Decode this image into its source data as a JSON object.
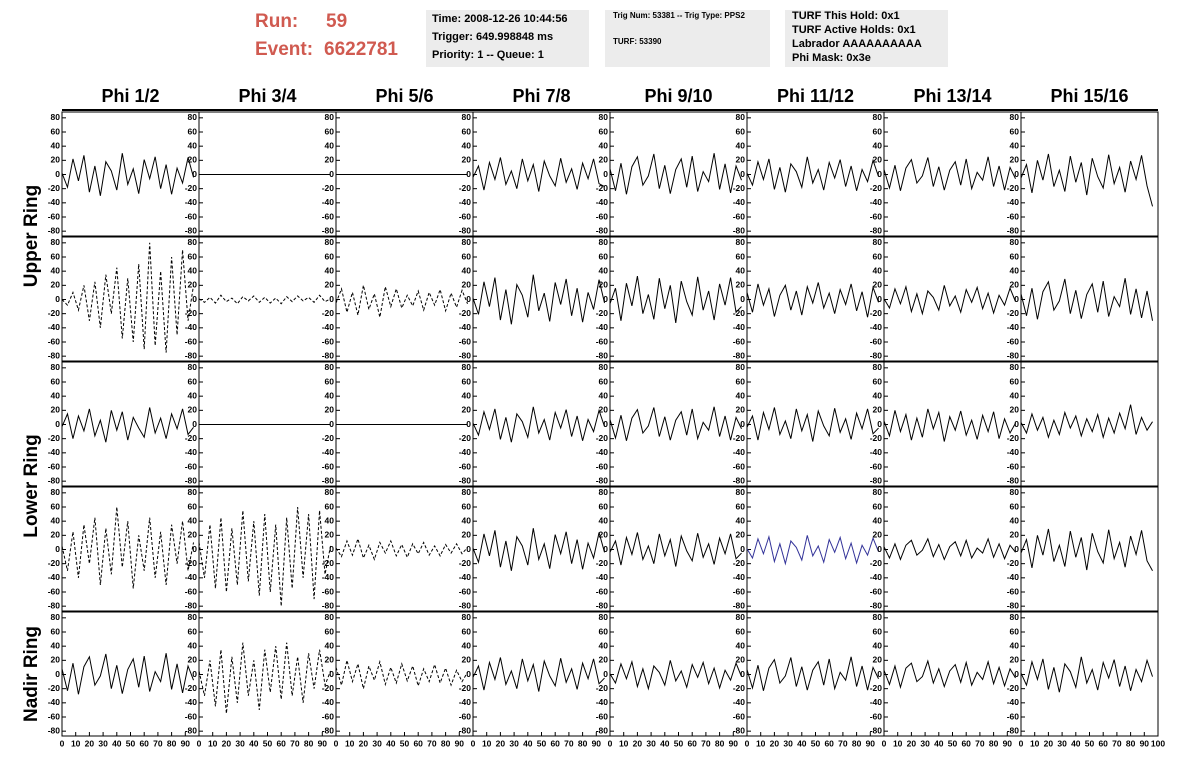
{
  "header": {
    "run_label": "Run:",
    "run": "59",
    "event_label": "Event:",
    "event": "6622781",
    "info": [
      [
        "Time: 2008-12-26 10:44:56",
        "Trigger: 649.998848 ms",
        "Priority: 1 -- Queue: 1"
      ],
      [
        "Trig Num: 53381 -- Trig Type: PPS2",
        "TURF: 53390"
      ],
      [
        "TURF This Hold: 0x1",
        "TURF Active Holds: 0x1",
        "Labrador AAAAAAAAAA",
        "Phi Mask: 0x3e"
      ]
    ]
  },
  "columns": [
    "Phi 1/2",
    "Phi 3/4",
    "Phi 5/6",
    "Phi 7/8",
    "Phi 9/10",
    "Phi 11/12",
    "Phi 13/14",
    "Phi 15/16"
  ],
  "rows": [
    "Upper Ring",
    "Lower Ring",
    "Nadir Ring"
  ],
  "axes": {
    "xlim": [
      0,
      100
    ],
    "ylim": [
      -84,
      84
    ],
    "xticks": [
      0,
      10,
      20,
      30,
      40,
      50,
      60,
      70,
      80,
      90,
      100
    ],
    "yticks": [
      -80,
      -60,
      -40,
      -20,
      0,
      20,
      40,
      60,
      80
    ]
  },
  "x": [
    0,
    4,
    8,
    12,
    16,
    20,
    24,
    28,
    32,
    36,
    40,
    44,
    48,
    52,
    56,
    60,
    64,
    68,
    72,
    76,
    80,
    84,
    88,
    92,
    96
  ],
  "panels": [
    [
      {
        "line_style": "solid",
        "color": "#000000",
        "values": [
          2,
          -18,
          22,
          -9,
          27,
          -25,
          12,
          -30,
          18,
          5,
          -22,
          30,
          -14,
          8,
          -27,
          21,
          -6,
          25,
          -20,
          14,
          -28,
          9,
          -12,
          24,
          -4
        ]
      },
      {
        "line_style": "solid",
        "color": "#000000",
        "values": [
          0,
          0,
          0,
          0,
          0,
          0,
          0,
          0,
          0,
          0,
          0,
          0,
          0,
          0,
          0,
          0,
          0,
          0,
          0,
          0,
          0,
          0,
          0,
          0,
          0
        ]
      },
      {
        "line_style": "solid",
        "color": "#000000",
        "values": [
          0,
          0,
          0,
          0,
          0,
          0,
          0,
          0,
          0,
          0,
          0,
          0,
          0,
          0,
          0,
          0,
          0,
          0,
          0,
          0,
          0,
          0,
          0,
          0,
          0
        ]
      },
      {
        "line_style": "solid",
        "color": "#000000",
        "values": [
          -4,
          12,
          -22,
          17,
          -7,
          24,
          -14,
          5,
          -20,
          22,
          -9,
          14,
          -24,
          19,
          -2,
          -16,
          23,
          -11,
          8,
          -21,
          16,
          -6,
          22,
          -13,
          -17
        ]
      },
      {
        "line_style": "solid",
        "color": "#000000",
        "values": [
          8,
          -23,
          16,
          -28,
          11,
          25,
          -15,
          -2,
          29,
          -20,
          13,
          -27,
          7,
          22,
          -18,
          26,
          -24,
          4,
          -10,
          30,
          -21,
          15,
          -26,
          12,
          -8
        ]
      },
      {
        "line_style": "solid",
        "color": "#000000",
        "values": [
          2,
          -15,
          18,
          -7,
          22,
          -21,
          10,
          -25,
          15,
          4,
          -18,
          25,
          -12,
          7,
          -22,
          17,
          -5,
          21,
          -17,
          12,
          -23,
          7,
          -10,
          20,
          -3
        ]
      },
      {
        "line_style": "solid",
        "color": "#000000",
        "values": [
          7,
          -19,
          13,
          -23,
          9,
          21,
          -12,
          -2,
          24,
          -17,
          11,
          -22,
          6,
          18,
          -15,
          22,
          -20,
          3,
          -8,
          25,
          -17,
          12,
          -22,
          10,
          -6
        ]
      },
      {
        "line_style": "solid",
        "color": "#000000",
        "values": [
          -5,
          14,
          -26,
          20,
          -8,
          29,
          -17,
          6,
          -24,
          26,
          -11,
          17,
          -29,
          23,
          -3,
          -19,
          28,
          -13,
          10,
          -25,
          19,
          -7,
          27,
          -16,
          -45
        ]
      }
    ],
    [
      {
        "line_style": "dashed",
        "color": "#000000",
        "values": [
          0,
          -8,
          10,
          -15,
          20,
          -30,
          25,
          -40,
          35,
          -20,
          45,
          -55,
          30,
          -60,
          50,
          -70,
          80,
          -65,
          40,
          -75,
          60,
          -50,
          70,
          -30,
          20
        ]
      },
      {
        "line_style": "dashed",
        "color": "#000000",
        "values": [
          1,
          -4,
          3,
          -5,
          6,
          -3,
          2,
          -6,
          4,
          -2,
          5,
          -4,
          3,
          -5,
          2,
          -6,
          4,
          -3,
          5,
          -2,
          3,
          -4,
          6,
          -3,
          1
        ]
      },
      {
        "line_style": "dashed",
        "color": "#000000",
        "values": [
          -5,
          15,
          -18,
          10,
          -22,
          20,
          -14,
          8,
          -25,
          18,
          -10,
          15,
          -12,
          6,
          -9,
          12,
          -15,
          10,
          -8,
          14,
          -16,
          9,
          -11,
          13,
          -6
        ]
      },
      {
        "line_style": "solid",
        "color": "#000000",
        "values": [
          2,
          -21,
          25,
          -10,
          31,
          -29,
          14,
          -35,
          21,
          6,
          -25,
          35,
          -16,
          9,
          -31,
          24,
          -7,
          29,
          -23,
          16,
          -32,
          10,
          -14,
          28,
          -5
        ]
      },
      {
        "line_style": "solid",
        "color": "#000000",
        "values": [
          -6,
          16,
          -30,
          23,
          -9,
          33,
          -20,
          7,
          -28,
          30,
          -13,
          20,
          -33,
          26,
          -3,
          -22,
          32,
          -15,
          12,
          -29,
          22,
          -8,
          31,
          -18,
          -10
        ]
      },
      {
        "line_style": "solid",
        "color": "#000000",
        "values": [
          10,
          -18,
          22,
          -8,
          15,
          -24,
          6,
          20,
          -15,
          12,
          -22,
          18,
          -5,
          24,
          -12,
          9,
          -20,
          14,
          -7,
          22,
          -16,
          11,
          -25,
          17,
          -4
        ]
      },
      {
        "line_style": "solid",
        "color": "#000000",
        "values": [
          1,
          -12,
          15,
          -6,
          18,
          -17,
          8,
          -20,
          12,
          3,
          -15,
          20,
          -9,
          5,
          -18,
          14,
          -4,
          17,
          -13,
          9,
          -19,
          6,
          -8,
          16,
          -3
        ]
      },
      {
        "line_style": "solid",
        "color": "#000000",
        "values": [
          8,
          -23,
          16,
          -28,
          11,
          25,
          -15,
          -2,
          29,
          -20,
          13,
          -27,
          7,
          22,
          -18,
          26,
          -24,
          4,
          -10,
          30,
          -21,
          15,
          -26,
          12,
          -30
        ]
      }
    ],
    [
      {
        "line_style": "solid",
        "color": "#000000",
        "values": [
          -3,
          15,
          -20,
          12,
          -9,
          22,
          -16,
          6,
          -25,
          20,
          -8,
          18,
          -22,
          10,
          -5,
          -18,
          24,
          -12,
          9,
          -20,
          15,
          -6,
          22,
          -14,
          -4
        ]
      },
      {
        "line_style": "solid",
        "color": "#000000",
        "values": [
          0,
          0,
          0,
          0,
          0,
          0,
          0,
          0,
          0,
          0,
          0,
          0,
          0,
          0,
          0,
          0,
          0,
          0,
          0,
          0,
          0,
          0,
          0,
          0,
          0
        ]
      },
      {
        "line_style": "solid",
        "color": "#000000",
        "values": [
          0,
          0,
          0,
          0,
          0,
          0,
          0,
          0,
          0,
          0,
          0,
          0,
          0,
          0,
          0,
          0,
          0,
          0,
          0,
          0,
          0,
          0,
          0,
          0,
          0
        ]
      },
      {
        "line_style": "solid",
        "color": "#000000",
        "values": [
          2,
          -15,
          18,
          -7,
          22,
          -21,
          10,
          -25,
          15,
          4,
          -18,
          25,
          -12,
          7,
          -22,
          17,
          -5,
          21,
          -17,
          12,
          -23,
          7,
          -10,
          20,
          -3
        ]
      },
      {
        "line_style": "solid",
        "color": "#000000",
        "values": [
          7,
          -19,
          13,
          -23,
          9,
          21,
          -12,
          -2,
          24,
          -17,
          11,
          -22,
          6,
          18,
          -15,
          22,
          -20,
          3,
          -8,
          25,
          -17,
          12,
          -22,
          10,
          -6
        ]
      },
      {
        "line_style": "solid",
        "color": "#000000",
        "values": [
          -4,
          12,
          -22,
          17,
          -7,
          24,
          -14,
          5,
          -20,
          22,
          -9,
          14,
          -24,
          19,
          -2,
          -16,
          23,
          -11,
          8,
          -21,
          16,
          -6,
          22,
          -13,
          -5
        ]
      },
      {
        "line_style": "solid",
        "color": "#000000",
        "values": [
          5,
          -16,
          20,
          -10,
          14,
          -22,
          9,
          -18,
          22,
          -6,
          17,
          -24,
          11,
          -8,
          19,
          -15,
          6,
          -21,
          13,
          -10,
          18,
          -20,
          8,
          -12,
          2
        ]
      },
      {
        "line_style": "solid",
        "color": "#000000",
        "values": [
          3,
          -12,
          15,
          -8,
          10,
          -18,
          6,
          -14,
          17,
          -5,
          12,
          -16,
          8,
          -10,
          14,
          -18,
          9,
          -12,
          16,
          -6,
          28,
          -14,
          10,
          -8,
          4
        ]
      }
    ],
    [
      {
        "line_style": "dashed",
        "color": "#000000",
        "values": [
          5,
          -30,
          25,
          -40,
          35,
          -20,
          45,
          -50,
          30,
          -35,
          60,
          -25,
          40,
          -55,
          20,
          -30,
          45,
          -40,
          25,
          -50,
          35,
          -20,
          40,
          -30,
          10
        ]
      },
      {
        "line_style": "dashed",
        "color": "#000000",
        "values": [
          10,
          -40,
          35,
          -55,
          45,
          -60,
          30,
          -50,
          55,
          -45,
          40,
          -65,
          50,
          -60,
          35,
          -80,
          45,
          -55,
          60,
          -40,
          50,
          -70,
          55,
          -35,
          5
        ]
      },
      {
        "line_style": "dashed",
        "color": "#000000",
        "values": [
          2,
          -10,
          12,
          -8,
          15,
          -12,
          6,
          -14,
          10,
          -5,
          12,
          -9,
          7,
          -11,
          8,
          -6,
          10,
          -8,
          5,
          -9,
          7,
          -5,
          8,
          -6,
          3
        ]
      },
      {
        "line_style": "solid",
        "color": "#000000",
        "values": [
          2,
          -18,
          22,
          -9,
          27,
          -25,
          12,
          -30,
          18,
          5,
          -22,
          30,
          -14,
          8,
          -27,
          21,
          -6,
          25,
          -20,
          14,
          -28,
          9,
          -12,
          24,
          -4
        ]
      },
      {
        "line_style": "solid",
        "color": "#000000",
        "values": [
          -4,
          12,
          -22,
          17,
          -7,
          24,
          -14,
          5,
          -20,
          22,
          -9,
          14,
          -24,
          19,
          -2,
          -16,
          23,
          -11,
          8,
          -21,
          16,
          -6,
          22,
          -13,
          -5
        ]
      },
      {
        "line_style": "solid",
        "color": "#333399",
        "values": [
          1,
          -12,
          15,
          -6,
          18,
          -17,
          8,
          -20,
          12,
          3,
          -15,
          20,
          -9,
          5,
          -18,
          14,
          -4,
          17,
          -13,
          9,
          -19,
          6,
          -8,
          16,
          -3
        ]
      },
      {
        "line_style": "solid",
        "color": "#000000",
        "values": [
          4,
          -12,
          8,
          -14,
          6,
          13,
          -8,
          -1,
          15,
          -10,
          7,
          -14,
          4,
          11,
          -9,
          13,
          -12,
          2,
          -5,
          15,
          -11,
          8,
          -13,
          6,
          -4
        ]
      },
      {
        "line_style": "solid",
        "color": "#000000",
        "values": [
          -5,
          14,
          -26,
          20,
          -8,
          29,
          -17,
          6,
          -24,
          26,
          -11,
          17,
          -29,
          23,
          -3,
          -19,
          28,
          -13,
          10,
          -25,
          19,
          -7,
          27,
          -16,
          -30
        ]
      }
    ],
    [
      {
        "line_style": "solid",
        "color": "#000000",
        "values": [
          8,
          -23,
          16,
          -28,
          11,
          25,
          -15,
          -2,
          29,
          -20,
          13,
          -27,
          7,
          22,
          -18,
          26,
          -24,
          4,
          -10,
          30,
          -21,
          15,
          -26,
          12,
          -8
        ]
      },
      {
        "line_style": "dashed",
        "color": "#000000",
        "values": [
          5,
          -30,
          20,
          -45,
          35,
          -55,
          25,
          -40,
          45,
          -30,
          20,
          -50,
          35,
          -25,
          40,
          -35,
          45,
          -30,
          25,
          -40,
          30,
          -20,
          35,
          -15,
          5
        ]
      },
      {
        "line_style": "dashed",
        "color": "#000000",
        "values": [
          10,
          -15,
          20,
          -10,
          15,
          -20,
          12,
          -8,
          18,
          -14,
          10,
          -12,
          15,
          -9,
          12,
          -16,
          8,
          -10,
          14,
          -12,
          9,
          -15,
          6,
          -10,
          3
        ]
      },
      {
        "line_style": "solid",
        "color": "#000000",
        "values": [
          -4,
          12,
          -22,
          17,
          -7,
          24,
          -14,
          5,
          -20,
          22,
          -9,
          14,
          -24,
          19,
          -2,
          -16,
          23,
          -11,
          8,
          -21,
          16,
          -6,
          22,
          -13,
          -5
        ]
      },
      {
        "line_style": "solid",
        "color": "#000000",
        "values": [
          1,
          -12,
          15,
          -6,
          18,
          -17,
          8,
          -20,
          12,
          3,
          -15,
          20,
          -9,
          5,
          -18,
          14,
          -4,
          17,
          -13,
          9,
          -19,
          6,
          -8,
          16,
          -3
        ]
      },
      {
        "line_style": "solid",
        "color": "#000000",
        "values": [
          7,
          -19,
          13,
          -23,
          9,
          21,
          -12,
          -2,
          24,
          -17,
          11,
          -22,
          6,
          18,
          -15,
          22,
          -20,
          3,
          -8,
          25,
          -17,
          12,
          -22,
          10,
          -6
        ]
      },
      {
        "line_style": "solid",
        "color": "#000000",
        "values": [
          6,
          -14,
          12,
          -18,
          9,
          16,
          -10,
          -3,
          19,
          -12,
          8,
          -17,
          5,
          14,
          -11,
          17,
          -15,
          3,
          -7,
          18,
          -13,
          10,
          -16,
          8,
          -5
        ]
      },
      {
        "line_style": "solid",
        "color": "#000000",
        "values": [
          2,
          -15,
          18,
          -7,
          22,
          -21,
          10,
          -25,
          15,
          4,
          -18,
          25,
          -12,
          7,
          -22,
          17,
          -5,
          21,
          -17,
          12,
          -23,
          7,
          -10,
          20,
          -3
        ]
      }
    ]
  ]
}
